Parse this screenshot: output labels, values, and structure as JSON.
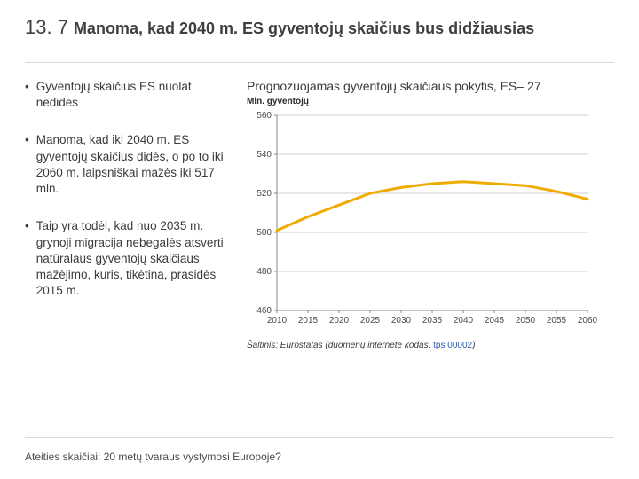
{
  "header": {
    "number": "13. 7",
    "title": "Manoma, kad 2040 m. ES gyventojų skaičius bus didžiausias"
  },
  "bullets": [
    "Gyventojų skaičius ES nuolat nedidės",
    "Manoma, kad iki 2040 m. ES gyventojų skaičius didės, o po to iki 2060 m. laipsniškai mažės iki 517 mln.",
    "Taip yra todėl, kad nuo 2035 m. grynoji migracija nebegalės atsverti natūralaus gyventojų skaičiaus mažėjimo, kuris, tikėtina, prasidės 2015 m."
  ],
  "chart": {
    "title": "Prognozuojamas gyventojų skaičiaus pokytis, ES– 27",
    "subtitle": "Mln. gyventojų",
    "type": "line",
    "x_values": [
      2010,
      2015,
      2020,
      2025,
      2030,
      2035,
      2040,
      2045,
      2050,
      2055,
      2060
    ],
    "y_values": [
      501,
      508,
      514,
      520,
      523,
      525,
      526,
      525,
      524,
      521,
      517
    ],
    "xlim": [
      2010,
      2060
    ],
    "ylim": [
      460,
      560
    ],
    "ytick_step": 20,
    "line_color": "#f0ab00",
    "line_width": 3,
    "grid_color": "#cfcfcf",
    "axis_color": "#888888",
    "tick_font_size": 10,
    "tick_color": "#4a4a4a",
    "background_color": "#ffffff"
  },
  "source": {
    "prefix": "Šaltinis: Eurostatas",
    "mid": " (duomenų internete kodas: ",
    "link_text": "tps 00002",
    "suffix": ")"
  },
  "footer": "Ateities skaičiai: 20 metų tvaraus vystymosi Europoje?"
}
